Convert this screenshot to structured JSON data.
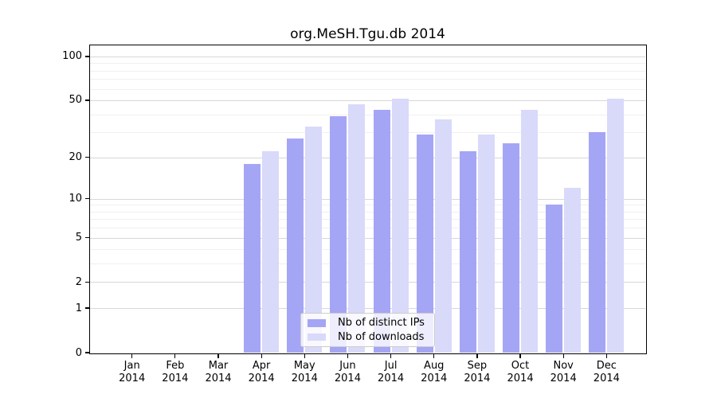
{
  "chart_data": {
    "type": "bar",
    "title": "org.MeSH.Tgu.db 2014",
    "categories": [
      "Jan",
      "Feb",
      "Mar",
      "Apr",
      "May",
      "Jun",
      "Jul",
      "Aug",
      "Sep",
      "Oct",
      "Nov",
      "Dec"
    ],
    "year": "2014",
    "series": [
      {
        "name": "Nb of distinct IPs",
        "color": "#a5a5f5",
        "values": [
          0,
          0,
          0,
          18,
          27,
          39,
          43,
          29,
          22,
          25,
          9,
          30
        ]
      },
      {
        "name": "Nb of downloads",
        "color": "#d9d9fa",
        "values": [
          0,
          0,
          0,
          22,
          33,
          47,
          51,
          37,
          29,
          43,
          12,
          51
        ]
      }
    ],
    "yscale": "log1p",
    "ylim": [
      0,
      119
    ],
    "y_ticks": [
      0,
      1,
      2,
      5,
      10,
      20,
      50,
      100
    ],
    "y_minor_gridlines": [
      3,
      4,
      6,
      7,
      8,
      9,
      30,
      40,
      60,
      70,
      80,
      90
    ],
    "grid": true,
    "legend_position": "lower-center-inside",
    "colors": {
      "major_grid": "#d7d7d7",
      "minor_grid": "#f0f0f0",
      "axis": "#000000",
      "background": "#ffffff"
    }
  }
}
